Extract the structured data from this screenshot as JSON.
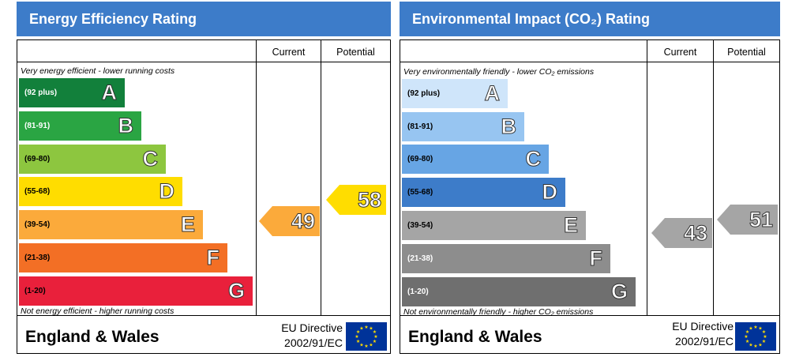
{
  "colors": {
    "header_blue": "#3d7cc9",
    "ee_bands": [
      "#12803b",
      "#2aa543",
      "#8dc63f",
      "#ffdd00",
      "#fbaa3b",
      "#f36f25",
      "#e9203b"
    ],
    "ei_bands": [
      "#cfe5fa",
      "#97c5f1",
      "#67a5e4",
      "#3d7cc9",
      "#a5a5a5",
      "#8d8d8d",
      "#6f6f6f"
    ]
  },
  "energy": {
    "title": "Energy Efficiency Rating",
    "col_current": "Current",
    "col_potential": "Potential",
    "top_caption": "Very energy efficient - lower running costs",
    "bottom_caption": "Not energy efficient - higher running costs",
    "bands": [
      {
        "range": "(92 plus)",
        "letter": "A"
      },
      {
        "range": "(81-91)",
        "letter": "B"
      },
      {
        "range": "(69-80)",
        "letter": "C"
      },
      {
        "range": "(55-68)",
        "letter": "D"
      },
      {
        "range": "(39-54)",
        "letter": "E"
      },
      {
        "range": "(21-38)",
        "letter": "F"
      },
      {
        "range": "(1-20)",
        "letter": "G"
      }
    ],
    "current": {
      "value": "49",
      "color": "#fbaa3b"
    },
    "potential": {
      "value": "58",
      "color": "#ffdd00"
    },
    "region": "England & Wales",
    "directive_line1": "EU Directive",
    "directive_line2": "2002/91/EC"
  },
  "environment": {
    "title": "Environmental Impact (CO₂) Rating",
    "col_current": "Current",
    "col_potential": "Potential",
    "top_caption": "Very environmentally friendly - lower CO₂ emissions",
    "bottom_caption": "Not environmentally friendly - higher CO₂ emissions",
    "bands": [
      {
        "range": "(92 plus)",
        "letter": "A"
      },
      {
        "range": "(81-91)",
        "letter": "B"
      },
      {
        "range": "(69-80)",
        "letter": "C"
      },
      {
        "range": "(55-68)",
        "letter": "D"
      },
      {
        "range": "(39-54)",
        "letter": "E"
      },
      {
        "range": "(21-38)",
        "letter": "F"
      },
      {
        "range": "(1-20)",
        "letter": "G"
      }
    ],
    "current": {
      "value": "43",
      "color": "#a5a5a5"
    },
    "potential": {
      "value": "51",
      "color": "#a5a5a5"
    },
    "region": "England & Wales",
    "directive_line1": "EU Directive",
    "directive_line2": "2002/91/EC"
  }
}
